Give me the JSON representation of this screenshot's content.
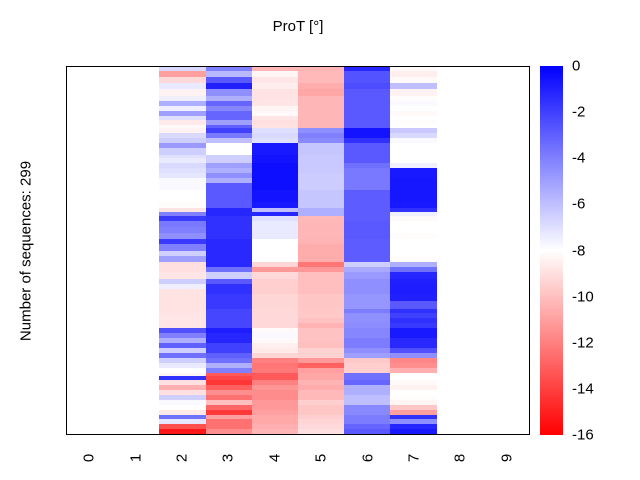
{
  "chart_data": {
    "type": "heatmap",
    "title": "ProT [°]",
    "ylabel": "Number of sequences: 299",
    "n_sequences": 299,
    "x_tick_labels": [
      "0",
      "1",
      "2",
      "3",
      "4",
      "5",
      "6",
      "7",
      "8",
      "9"
    ],
    "n_columns": 10,
    "data_column_start": 2,
    "data_column_count": 6,
    "value_range": [
      -16,
      0
    ],
    "grid": false,
    "colormap": {
      "max_value": 0,
      "mid_value": -8,
      "min_value": -16,
      "max_color": "#0000ff",
      "mid_color": "#ffffff",
      "min_color": "#ff0000"
    },
    "colorbar_tick_labels": [
      "0",
      "-2",
      "-4",
      "-6",
      "-8",
      "-10",
      "-12",
      "-14",
      "-16"
    ],
    "empty_value_color": "#ffffff",
    "rows_legend": "each row = [height_weight, col2, col3, col4, col5, col6, col7]; values are ProT in degrees on the -16..0 colour scale; columns 0,1,8,9 contain no data",
    "rows": [
      [
        4,
        -6.8,
        -4,
        -10.3,
        -10.3,
        -1.2,
        -8.2
      ],
      [
        6,
        -11,
        -5.8,
        -8.3,
        -10.2,
        -2.6,
        -8.5
      ],
      [
        6,
        -9.2,
        -2.8,
        -8.8,
        -10.2,
        -2.6,
        -8.2
      ],
      [
        6,
        -7.3,
        -1,
        -8.6,
        -10.6,
        -2.4,
        -6
      ],
      [
        7,
        -8.4,
        -4.5,
        -8.9,
        -10.8,
        -2.8,
        -8.4
      ],
      [
        5,
        -7.5,
        -5.5,
        -8.9,
        -10.3,
        -2.8,
        -8.1
      ],
      [
        5,
        -5.5,
        -3.2,
        -8.8,
        -10.3,
        -2.8,
        -7.8
      ],
      [
        5,
        -7.5,
        -4.2,
        -8.3,
        -10.3,
        -2.8,
        -8
      ],
      [
        5,
        -5,
        -3.2,
        -8.2,
        -10.3,
        -2.8,
        -8.2
      ],
      [
        5,
        -7,
        -3.2,
        -8.8,
        -10.3,
        -2.8,
        -8
      ],
      [
        5,
        -8.7,
        -5,
        -9,
        -10.3,
        -2.8,
        -8.1
      ],
      [
        3,
        -8.2,
        -3,
        -8.9,
        -10.3,
        -2.8,
        -8
      ],
      [
        5,
        -8.4,
        -2,
        -7,
        -4.5,
        -0.6,
        -6.3
      ],
      [
        5,
        -6.8,
        -3.8,
        -6.8,
        -4,
        -0.6,
        -6.8
      ],
      [
        5,
        -6.5,
        -6,
        -7,
        -4.3,
        -1.5,
        -7.8
      ],
      [
        5,
        -4.8,
        -8,
        -0.8,
        -6.2,
        -2.8,
        -8
      ],
      [
        7,
        -6.5,
        -8,
        -0.8,
        -6.2,
        -2.8,
        -8
      ],
      [
        3,
        -7,
        -6.5,
        -0.6,
        -6.3,
        -2.8,
        -8
      ],
      [
        5,
        -7.3,
        -6.5,
        -0.6,
        -6.3,
        -2.8,
        -8
      ],
      [
        5,
        -6.8,
        -5,
        -0.4,
        -6.3,
        -3.5,
        -7.5
      ],
      [
        5,
        -7,
        -5.5,
        -0.4,
        -6.3,
        -3.8,
        -0.8
      ],
      [
        5,
        -7.2,
        -4.5,
        -0.4,
        -6.4,
        -3.8,
        -0.8
      ],
      [
        5,
        -7.8,
        -5.5,
        -0.4,
        -6.4,
        -3.8,
        -0.7
      ],
      [
        7,
        -7.8,
        -2.8,
        -0.4,
        -6.4,
        -3.8,
        -0.7
      ],
      [
        12,
        -8,
        -2.8,
        -0.6,
        -6.2,
        -2.9,
        -0.7
      ],
      [
        6,
        -8.1,
        -2.8,
        -0.8,
        -6.2,
        -2.9,
        -0.8
      ],
      [
        4,
        -8.9,
        -1.2,
        -6,
        -5.5,
        -2.9,
        -1.5
      ],
      [
        5,
        -4,
        -1.2,
        -1.2,
        -5.5,
        -2.9,
        -7.5
      ],
      [
        5,
        -1.8,
        -1.5,
        -7,
        -10.2,
        -2.9,
        -8.2
      ],
      [
        6,
        -3.8,
        -1.5,
        -7.3,
        -10.3,
        -2.8,
        -8
      ],
      [
        6,
        -4,
        -1.5,
        -7.3,
        -10.3,
        -2.8,
        -8
      ],
      [
        6,
        -4.5,
        -1.5,
        -7.3,
        -10.3,
        -2.8,
        -8.1
      ],
      [
        5,
        -1.8,
        -1.3,
        -8,
        -10.4,
        -2.9,
        -8
      ],
      [
        7,
        -4,
        -1.3,
        -8,
        -10.6,
        -2.9,
        -8
      ],
      [
        5,
        -6.5,
        -1.3,
        -8,
        -10.6,
        -2.9,
        -8
      ],
      [
        6,
        -5,
        -1.3,
        -8,
        -10.6,
        -2.9,
        -8.1
      ],
      [
        5,
        -9,
        -1.3,
        -9.3,
        -12.3,
        -6.5,
        -5.5
      ],
      [
        5,
        -9,
        -3.5,
        -11.2,
        -11.2,
        -5.3,
        -3.5
      ],
      [
        7,
        -8.8,
        -6.5,
        -9.2,
        -10,
        -4.8,
        -1.2
      ],
      [
        5,
        -6.5,
        -2.8,
        -9.5,
        -10,
        -4.5,
        -1
      ],
      [
        5,
        -7.5,
        -1.5,
        -9.5,
        -10,
        -4.5,
        -0.9
      ],
      [
        5,
        -8.9,
        -1.5,
        -9.5,
        -10,
        -4.5,
        -0.9
      ],
      [
        7,
        -8.9,
        -1.8,
        -9.3,
        -9.8,
        -4.7,
        -1
      ],
      [
        8,
        -8.9,
        -1.8,
        -9.3,
        -9.8,
        -4.7,
        -2.8
      ],
      [
        5,
        -8.9,
        -2.2,
        -9.2,
        -9.7,
        -3.9,
        -1.5
      ],
      [
        5,
        -8.8,
        -2.2,
        -9.2,
        -9.7,
        -4.5,
        -2
      ],
      [
        5,
        -8.8,
        -2.2,
        -9.2,
        -9.9,
        -4.5,
        -1.5
      ],
      [
        5,
        -8.8,
        -2.2,
        -9.2,
        -10.4,
        -4.4,
        -1.8
      ],
      [
        5,
        -2.5,
        -0.9,
        -8.2,
        -9.9,
        -4.2,
        -0.8
      ],
      [
        5,
        -4,
        -1.2,
        -7.8,
        -9.9,
        -4.2,
        -0.8
      ],
      [
        5,
        -5.5,
        -1.2,
        -8.2,
        -9.9,
        -3.9,
        -1.3
      ],
      [
        5,
        -3,
        -2,
        -8.5,
        -10,
        -3.9,
        -1.3
      ],
      [
        5,
        -6.5,
        -2,
        -8.7,
        -9.4,
        -4.5,
        -2.5
      ],
      [
        5,
        -3.5,
        -3,
        -9.3,
        -9.4,
        -5,
        -4.5
      ],
      [
        5,
        -6.5,
        -3.5,
        -12,
        -11.2,
        -9.7,
        -11.8
      ],
      [
        5,
        -7.3,
        -5.5,
        -12.3,
        -13,
        -9.5,
        -11.5
      ],
      [
        5,
        -8,
        -4,
        -12.2,
        -11,
        -9.5,
        -10.5
      ],
      [
        3,
        -8.3,
        -13.2,
        -13.2,
        -10.8,
        -3.5,
        -8
      ],
      [
        4,
        -1.5,
        -13.8,
        -13.2,
        -10.8,
        -3.5,
        -8
      ],
      [
        5,
        -9,
        -14.3,
        -12,
        -10.4,
        -3.2,
        -8.2
      ],
      [
        5,
        -10.5,
        -13,
        -11.3,
        -10.6,
        -5.5,
        -8.4
      ],
      [
        5,
        -9,
        -11.5,
        -11.6,
        -10.2,
        -5.5,
        -8
      ],
      [
        5,
        -6.5,
        -12.5,
        -11.6,
        -10.2,
        -6,
        -8.1
      ],
      [
        5,
        -7.8,
        -10,
        -11.2,
        -9.5,
        -6,
        -8.3
      ],
      [
        5,
        -8,
        -12.8,
        -11.2,
        -9.8,
        -4.3,
        -9.8
      ],
      [
        5,
        -8.7,
        -14.2,
        -11,
        -9.8,
        -4.3,
        -11
      ],
      [
        5,
        -3.5,
        -11,
        -10.7,
        -9.5,
        -3.9,
        -1.5
      ],
      [
        5,
        -7.2,
        -12.5,
        -10.7,
        -9.3,
        -3.9,
        -4.5
      ],
      [
        5,
        -13.5,
        -12.5,
        -10.5,
        -9.2,
        -3.2,
        -1.2
      ],
      [
        5,
        -15.3,
        -11.5,
        -10.3,
        -9,
        -2.8,
        -0.8
      ]
    ]
  }
}
